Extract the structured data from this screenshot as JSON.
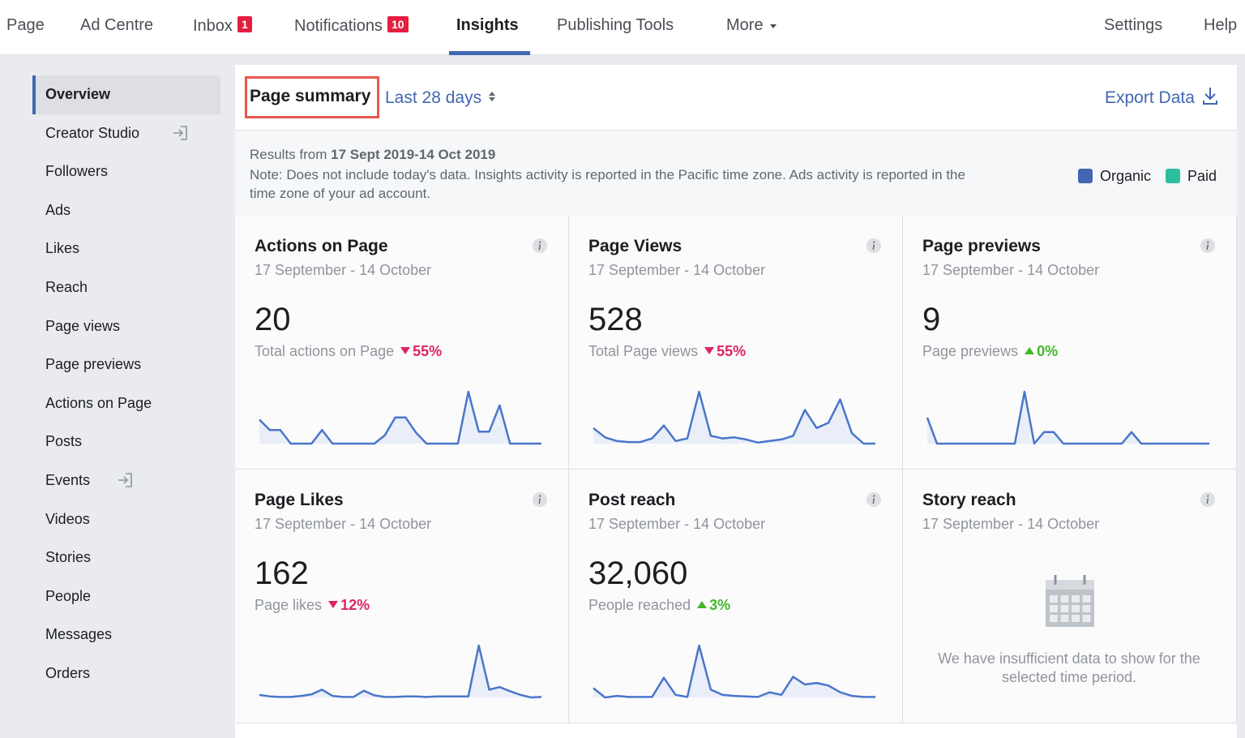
{
  "nav": {
    "items": [
      {
        "label": "Page"
      },
      {
        "label": "Ad Centre"
      },
      {
        "label": "Inbox",
        "badge": 1
      },
      {
        "label": "Notifications",
        "badge": 10
      },
      {
        "label": "Insights",
        "active": true
      },
      {
        "label": "Publishing Tools"
      },
      {
        "label": "More"
      }
    ],
    "right": [
      "Settings",
      "Help"
    ]
  },
  "sidebar": [
    {
      "label": "Overview",
      "active": true
    },
    {
      "label": "Creator Studio"
    },
    {
      "label": "Followers"
    },
    {
      "label": "Ads"
    },
    {
      "label": "Likes"
    },
    {
      "label": "Reach"
    },
    {
      "label": "Page views"
    },
    {
      "label": "Page previews"
    },
    {
      "label": "Actions on Page"
    },
    {
      "label": "Posts"
    },
    {
      "label": "Events"
    },
    {
      "label": "Videos"
    },
    {
      "label": "Stories"
    },
    {
      "label": "People"
    },
    {
      "label": "Messages"
    },
    {
      "label": "Orders"
    }
  ],
  "summary": {
    "title": "Page summary",
    "range": "Last 28 days",
    "export": "Export Data",
    "results_prefix": "Results from",
    "results_range": "17 Sept 2019-14 Oct 2019",
    "note": "Note: Does not include today's data. Insights activity is reported in the Pacific time zone. Ads activity is reported in the time zone of your ad account.",
    "legend": [
      {
        "name": "Organic",
        "color": "#4267b2"
      },
      {
        "name": "Paid",
        "color": "#2bbf9e"
      }
    ]
  },
  "cards": [
    {
      "title": "Actions on Page",
      "dates": "17 September - 14 October",
      "value": "20",
      "caption": "Total actions on Page",
      "change": "55%",
      "direction": "down",
      "spark": [
        4.4,
        2.5,
        2.5,
        0,
        0,
        0,
        2.5,
        0,
        0,
        0,
        0,
        0,
        1.5,
        4.8,
        4.8,
        2,
        0,
        0,
        0,
        0,
        9.5,
        2.2,
        2.2,
        7,
        0,
        0,
        0,
        0
      ]
    },
    {
      "title": "Page Views",
      "dates": "17 September - 14 October",
      "value": "528",
      "caption": "Total Page views",
      "change": "55%",
      "direction": "down",
      "spark": [
        3,
        1.2,
        0.5,
        0.3,
        0.3,
        1,
        3.5,
        0.5,
        1,
        10,
        1.5,
        1,
        1.2,
        0.8,
        0.2,
        0.5,
        0.8,
        1.5,
        6.5,
        3,
        4,
        8.5,
        2,
        0,
        0
      ]
    },
    {
      "title": "Page previews",
      "dates": "17 September - 14 October",
      "value": "9",
      "caption": "Page previews",
      "change": "0%",
      "direction": "up",
      "spark": [
        4.5,
        0,
        0,
        0,
        0,
        0,
        0,
        0,
        0,
        0,
        9,
        0,
        2,
        2,
        0,
        0,
        0,
        0,
        0,
        0,
        0,
        2,
        0,
        0,
        0,
        0,
        0,
        0,
        0,
        0
      ]
    },
    {
      "title": "Page Likes",
      "dates": "17 September - 14 October",
      "value": "162",
      "caption": "Page likes",
      "change": "12%",
      "direction": "down",
      "spark": [
        0.5,
        0.2,
        0.1,
        0.1,
        0.3,
        0.6,
        1.5,
        0.3,
        0.1,
        0.1,
        1.3,
        0.4,
        0.1,
        0.1,
        0.2,
        0.2,
        0.1,
        0.2,
        0.2,
        0.2,
        0.2,
        10,
        1.5,
        2,
        1.2,
        0.5,
        0,
        0.1
      ]
    },
    {
      "title": "Post reach",
      "dates": "17 September - 14 October",
      "value": "32,060",
      "caption": "People reached",
      "change": "3%",
      "direction": "up",
      "spark": [
        1.8,
        0,
        0.3,
        0.1,
        0.1,
        0.1,
        3.8,
        0.5,
        0.1,
        10,
        1.5,
        0.5,
        0.3,
        0.2,
        0.1,
        1,
        0.5,
        4,
        2.5,
        2.8,
        2.3,
        1,
        0.3,
        0.1,
        0.1
      ]
    },
    {
      "title": "Story reach",
      "dates": "17 September - 14 October",
      "message": "We have insufficient data to show for the selected time period."
    }
  ]
}
